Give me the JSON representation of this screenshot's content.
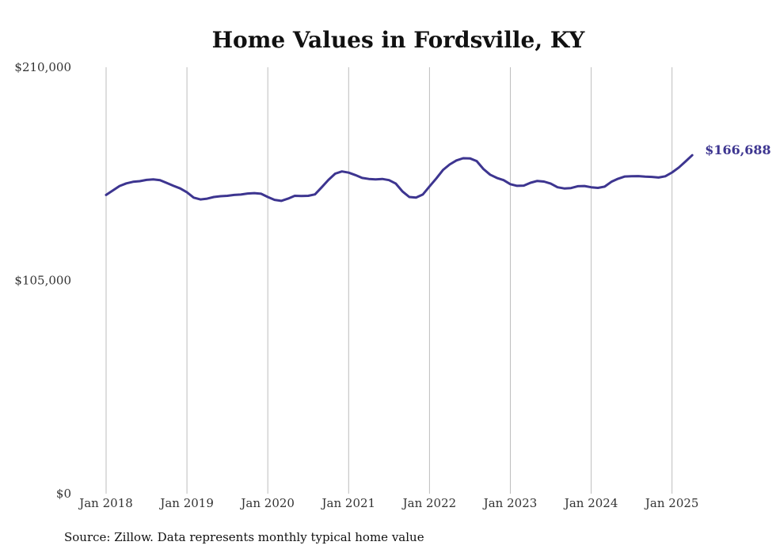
{
  "chart_data": {
    "type": "line",
    "title": "Home Values in Fordsville, KY",
    "xlabel": "",
    "ylabel": "",
    "ylim": [
      0,
      210000
    ],
    "y_ticks": [
      {
        "value": 0,
        "label": "$0"
      },
      {
        "value": 105000,
        "label": "$105,000"
      },
      {
        "value": 210000,
        "label": "$210,000"
      }
    ],
    "x_ticks": [
      {
        "value": "2018-01",
        "label": "Jan 2018"
      },
      {
        "value": "2019-01",
        "label": "Jan 2019"
      },
      {
        "value": "2020-01",
        "label": "Jan 2020"
      },
      {
        "value": "2021-01",
        "label": "Jan 2021"
      },
      {
        "value": "2022-01",
        "label": "Jan 2022"
      },
      {
        "value": "2023-01",
        "label": "Jan 2023"
      },
      {
        "value": "2024-01",
        "label": "Jan 2024"
      },
      {
        "value": "2025-01",
        "label": "Jan 2025"
      }
    ],
    "grid": "vertical",
    "line_color": "#3d3590",
    "end_label": "$166,688",
    "series": [
      {
        "x": [
          "2018-01",
          "2018-02",
          "2018-03",
          "2018-04",
          "2018-05",
          "2018-06",
          "2018-07",
          "2018-08",
          "2018-09",
          "2018-10",
          "2018-11",
          "2018-12",
          "2019-01",
          "2019-02",
          "2019-03",
          "2019-04",
          "2019-05",
          "2019-06",
          "2019-07",
          "2019-08",
          "2019-09",
          "2019-10",
          "2019-11",
          "2019-12",
          "2020-01",
          "2020-02",
          "2020-03",
          "2020-04",
          "2020-05",
          "2020-06",
          "2020-07",
          "2020-08",
          "2020-09",
          "2020-10",
          "2020-11",
          "2020-12",
          "2021-01",
          "2021-02",
          "2021-03",
          "2021-04",
          "2021-05",
          "2021-06",
          "2021-07",
          "2021-08",
          "2021-09",
          "2021-10",
          "2021-11",
          "2021-12",
          "2022-01",
          "2022-02",
          "2022-03",
          "2022-04",
          "2022-05",
          "2022-06",
          "2022-07",
          "2022-08",
          "2022-09",
          "2022-10",
          "2022-11",
          "2022-12",
          "2023-01",
          "2023-02",
          "2023-03",
          "2023-04",
          "2023-05",
          "2023-06",
          "2023-07",
          "2023-08",
          "2023-09",
          "2023-10",
          "2023-11",
          "2023-12",
          "2024-01",
          "2024-02",
          "2024-03",
          "2024-04",
          "2024-05",
          "2024-06",
          "2024-07",
          "2024-08",
          "2024-09",
          "2024-10",
          "2024-11",
          "2024-12",
          "2025-01",
          "2025-02",
          "2025-03",
          "2025-04"
        ],
        "values": [
          147100,
          149300,
          151500,
          152800,
          153600,
          153900,
          154500,
          154800,
          154400,
          153000,
          151600,
          150300,
          148400,
          145800,
          144900,
          145300,
          146100,
          146500,
          146700,
          147100,
          147300,
          147800,
          148000,
          147700,
          146100,
          144700,
          144200,
          145300,
          146700,
          146600,
          146700,
          147400,
          150900,
          154500,
          157600,
          158700,
          158100,
          156900,
          155500,
          155000,
          154800,
          155000,
          154400,
          152700,
          148800,
          146100,
          145800,
          147300,
          151300,
          155200,
          159400,
          162100,
          164100,
          165200,
          165100,
          163800,
          159900,
          157100,
          155500,
          154400,
          152400,
          151600,
          151700,
          153100,
          154000,
          153700,
          152700,
          150900,
          150300,
          150500,
          151400,
          151500,
          150900,
          150600,
          151200,
          153600,
          155100,
          156200,
          156300,
          156400,
          156100,
          156000,
          155700,
          156300,
          158200,
          160600,
          163600,
          166688
        ]
      }
    ]
  },
  "source_note": "Source: Zillow. Data represents monthly typical home value"
}
